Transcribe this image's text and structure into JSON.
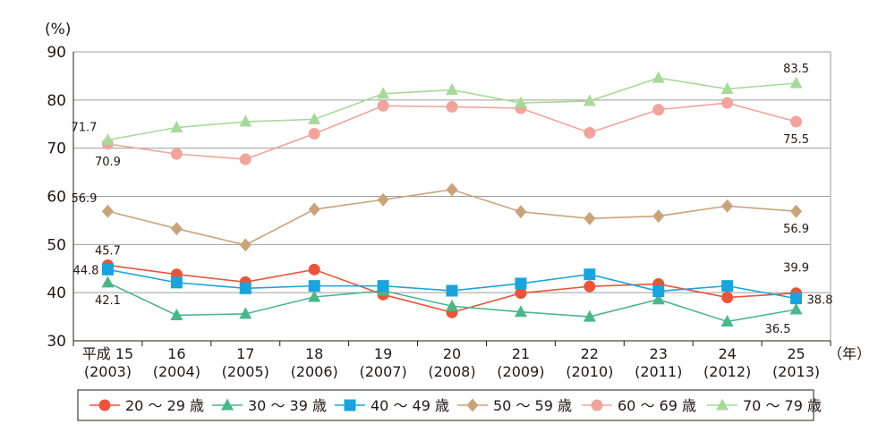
{
  "chart_data": {
    "type": "line",
    "ylabel": "(%)",
    "xunit": "（年）",
    "ylim": [
      30,
      90
    ],
    "yticks": [
      30,
      40,
      50,
      60,
      70,
      80,
      90
    ],
    "categories": [
      {
        "line1": "平成 15",
        "line2": "(2003)"
      },
      {
        "line1": "16",
        "line2": "(2004)"
      },
      {
        "line1": "17",
        "line2": "(2005)"
      },
      {
        "line1": "18",
        "line2": "(2006)"
      },
      {
        "line1": "19",
        "line2": "(2007)"
      },
      {
        "line1": "20",
        "line2": "(2008)"
      },
      {
        "line1": "21",
        "line2": "(2009)"
      },
      {
        "line1": "22",
        "line2": "(2010)"
      },
      {
        "line1": "23",
        "line2": "(2011)"
      },
      {
        "line1": "24",
        "line2": "(2012)"
      },
      {
        "line1": "25",
        "line2": "(2013)"
      }
    ],
    "grid": true,
    "legend_position": "bottom",
    "series": [
      {
        "name": "20 ～ 29 歳",
        "marker": "circle",
        "color": "#e8553b",
        "values": [
          45.7,
          43.8,
          42.2,
          44.8,
          39.6,
          35.9,
          39.9,
          41.3,
          41.8,
          39.0,
          39.9
        ]
      },
      {
        "name": "30 ～ 39 歳",
        "marker": "triangle",
        "color": "#4cb58a",
        "values": [
          42.1,
          35.3,
          35.6,
          39.1,
          40.4,
          37.2,
          36.0,
          35.0,
          38.6,
          34.0,
          36.5
        ]
      },
      {
        "name": "40 ～ 49 歳",
        "marker": "square",
        "color": "#1aa3dc",
        "values": [
          44.8,
          42.1,
          40.9,
          41.4,
          41.4,
          40.4,
          41.9,
          43.8,
          40.3,
          41.4,
          38.8
        ]
      },
      {
        "name": "50 ～ 59 歳",
        "marker": "diamond",
        "color": "#c9a37a",
        "values": [
          56.9,
          53.3,
          49.9,
          57.3,
          59.3,
          61.4,
          56.8,
          55.4,
          55.9,
          58.0,
          56.9
        ]
      },
      {
        "name": "60 ～ 69 歳",
        "marker": "circle",
        "color": "#f0a49b",
        "values": [
          70.9,
          68.8,
          67.7,
          73.0,
          78.8,
          78.6,
          78.3,
          73.2,
          78.0,
          79.4,
          75.5
        ]
      },
      {
        "name": "70 ～ 79 歳",
        "marker": "triangle",
        "color": "#a8d89a",
        "values": [
          71.7,
          74.3,
          75.5,
          76.0,
          81.3,
          82.1,
          79.4,
          79.8,
          84.6,
          82.3,
          83.5
        ]
      }
    ],
    "annotations": [
      {
        "text": "71.7",
        "series": 5,
        "index": 0,
        "pos": "above-left"
      },
      {
        "text": "70.9",
        "series": 4,
        "index": 0,
        "pos": "below"
      },
      {
        "text": "56.9",
        "series": 3,
        "index": 0,
        "pos": "above-left"
      },
      {
        "text": "45.7",
        "series": 0,
        "index": 0,
        "pos": "above"
      },
      {
        "text": "44.8",
        "series": 2,
        "index": 0,
        "pos": "left"
      },
      {
        "text": "42.1",
        "series": 1,
        "index": 0,
        "pos": "below"
      },
      {
        "text": "83.5",
        "series": 5,
        "index": 10,
        "pos": "above"
      },
      {
        "text": "75.5",
        "series": 4,
        "index": 10,
        "pos": "below"
      },
      {
        "text": "56.9",
        "series": 3,
        "index": 10,
        "pos": "below"
      },
      {
        "text": "39.9",
        "series": 0,
        "index": 10,
        "pos": "above-high"
      },
      {
        "text": "38.8",
        "series": 2,
        "index": 10,
        "pos": "right"
      },
      {
        "text": "36.5",
        "series": 1,
        "index": 10,
        "pos": "below-left"
      }
    ]
  }
}
